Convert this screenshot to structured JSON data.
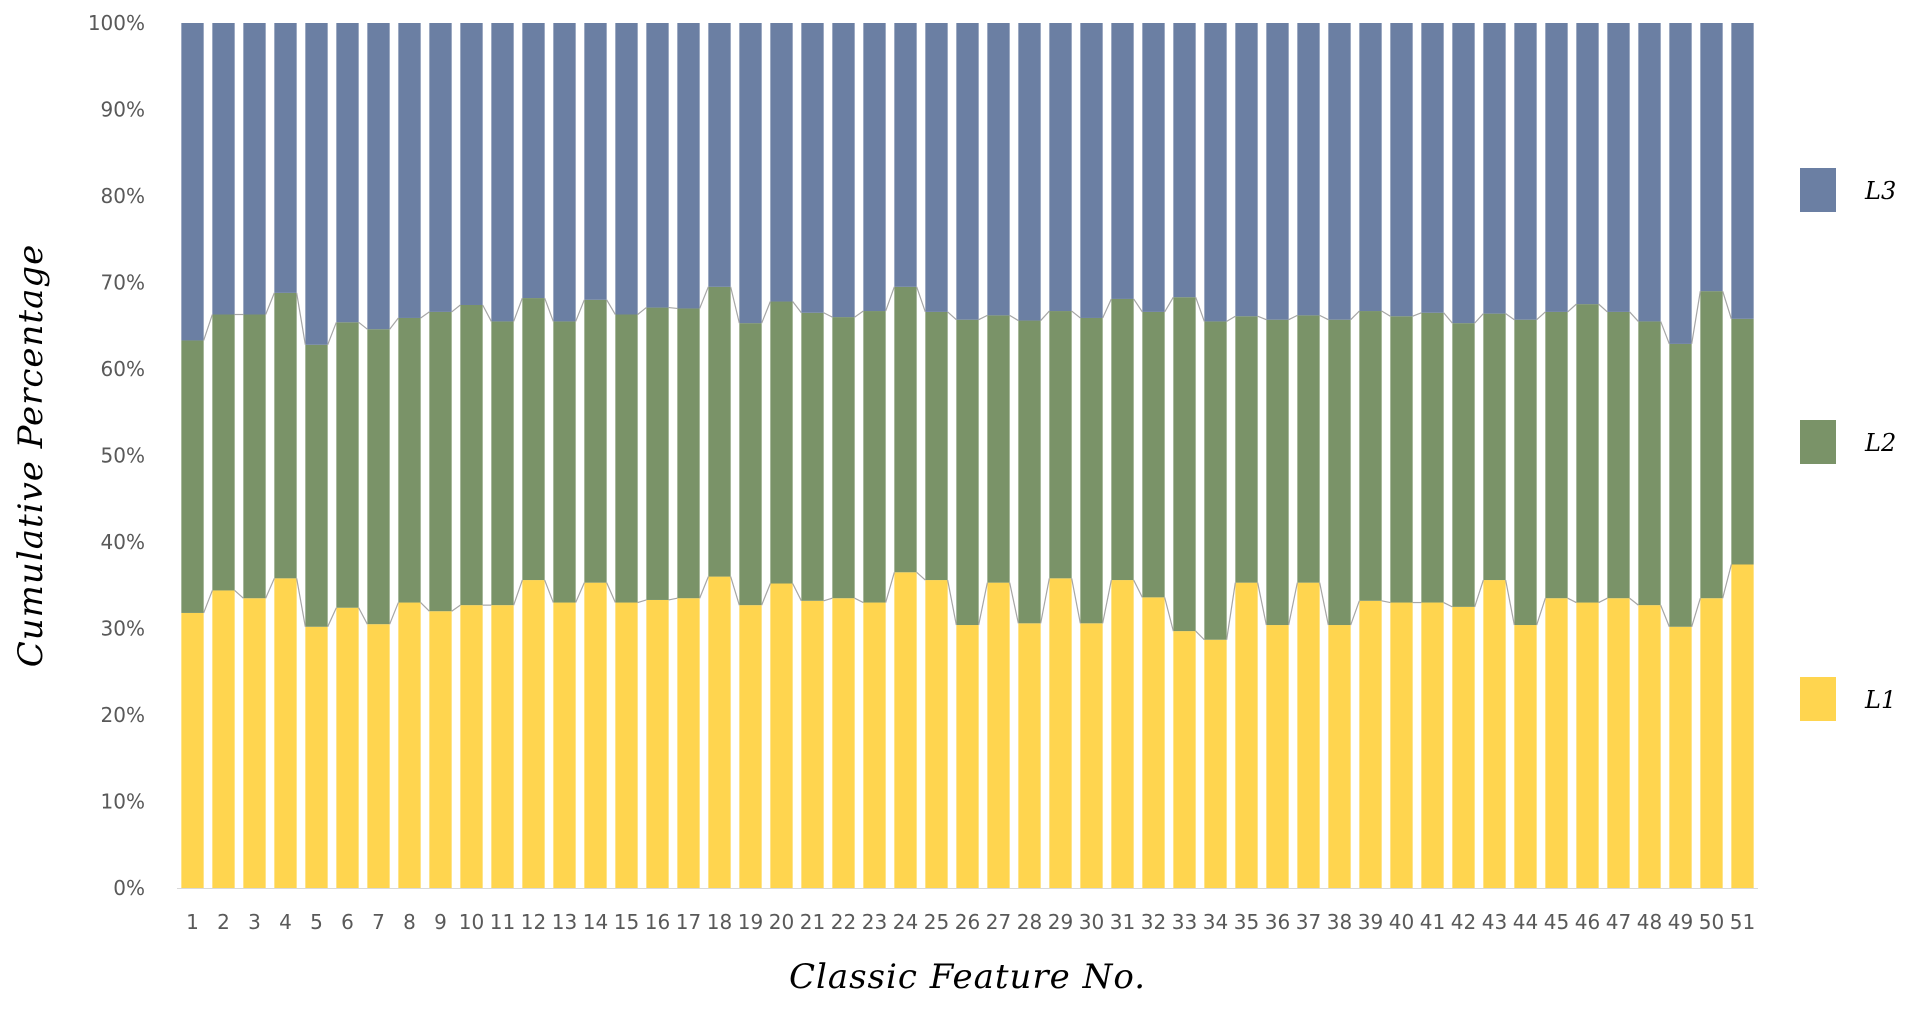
{
  "chart_data": {
    "type": "bar",
    "stacked": true,
    "normalized": true,
    "title": "",
    "xlabel": "Classic Feature No.",
    "ylabel": "Cumulative Percentage",
    "ylim": [
      0,
      100
    ],
    "yticks": [
      "0%",
      "10%",
      "20%",
      "30%",
      "40%",
      "50%",
      "60%",
      "70%",
      "80%",
      "90%",
      "100%"
    ],
    "categories": [
      "1",
      "2",
      "3",
      "4",
      "5",
      "6",
      "7",
      "8",
      "9",
      "10",
      "11",
      "12",
      "13",
      "14",
      "15",
      "16",
      "17",
      "18",
      "19",
      "20",
      "21",
      "22",
      "23",
      "24",
      "25",
      "26",
      "27",
      "28",
      "29",
      "30",
      "31",
      "32",
      "33",
      "34",
      "35",
      "36",
      "37",
      "38",
      "39",
      "40",
      "41",
      "42",
      "43",
      "44",
      "45",
      "46",
      "47",
      "48",
      "49",
      "50",
      "51"
    ],
    "series": [
      {
        "name": "L1",
        "color": "#FFD54F",
        "values": [
          31.8,
          34.4,
          33.5,
          35.8,
          30.2,
          32.4,
          30.5,
          33.0,
          32.0,
          32.7,
          32.7,
          35.6,
          33.0,
          35.3,
          33.0,
          33.3,
          33.5,
          36.0,
          32.7,
          35.2,
          33.2,
          33.5,
          33.0,
          36.5,
          35.6,
          30.4,
          35.3,
          30.6,
          35.8,
          30.6,
          35.6,
          33.6,
          29.7,
          28.7,
          35.3,
          30.4,
          35.3,
          30.4,
          33.2,
          33.0,
          33.0,
          32.5,
          35.6,
          30.4,
          33.5,
          33.0,
          33.5,
          32.7,
          30.2,
          33.5,
          37.4
        ]
      },
      {
        "name": "L2",
        "color": "#7A9368",
        "values": [
          31.5,
          31.9,
          32.8,
          33.0,
          32.6,
          33.0,
          34.1,
          32.9,
          34.6,
          34.7,
          32.8,
          32.6,
          32.5,
          32.7,
          33.3,
          33.8,
          33.5,
          33.5,
          32.6,
          32.6,
          33.3,
          32.5,
          33.7,
          33.0,
          31.0,
          35.3,
          30.9,
          35.0,
          30.9,
          35.3,
          32.5,
          33.0,
          38.6,
          36.8,
          30.8,
          35.3,
          30.9,
          35.3,
          33.5,
          33.1,
          33.5,
          32.8,
          30.8,
          35.3,
          33.1,
          34.5,
          33.1,
          32.8,
          32.7,
          35.5,
          28.4
        ]
      },
      {
        "name": "L3",
        "color": "#6B7FA3",
        "values": [
          36.7,
          33.7,
          33.7,
          31.2,
          37.2,
          34.6,
          35.4,
          34.1,
          33.4,
          32.6,
          34.5,
          31.8,
          34.5,
          32.0,
          33.7,
          32.9,
          33.0,
          30.5,
          34.7,
          32.2,
          33.5,
          34.0,
          33.3,
          30.5,
          33.4,
          34.3,
          33.8,
          34.4,
          33.3,
          34.1,
          31.9,
          33.4,
          31.7,
          34.5,
          33.9,
          34.3,
          33.8,
          34.3,
          33.3,
          33.9,
          33.5,
          34.7,
          33.6,
          34.3,
          33.4,
          32.5,
          33.4,
          34.5,
          37.1,
          31.0,
          34.2
        ]
      }
    ],
    "legend": [
      "L3",
      "L2",
      "L1"
    ],
    "legend_position": "right",
    "series_lines": true,
    "gridlines": false
  }
}
